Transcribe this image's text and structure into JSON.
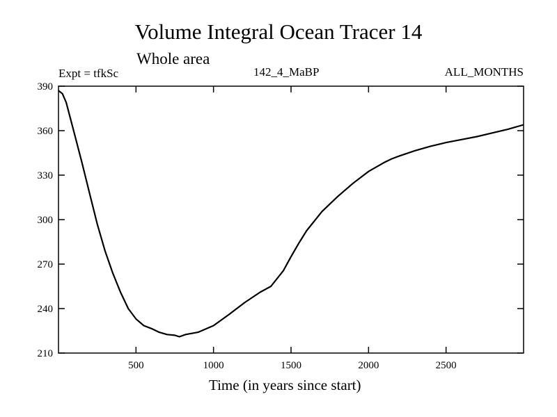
{
  "chart_data": {
    "type": "line",
    "title": "Volume Integral Ocean Tracer 14",
    "subtitle": "Whole area",
    "annotations": {
      "left": "Expt = tfkSc",
      "center": "142_4_MaBP",
      "right": "ALL_MONTHS"
    },
    "xlabel": "Time (in years since start)",
    "ylabel": "",
    "xlim": [
      0,
      3000
    ],
    "ylim": [
      210,
      390
    ],
    "xticks": [
      500,
      1000,
      1500,
      2000,
      2500
    ],
    "yticks": [
      210,
      240,
      270,
      300,
      330,
      360,
      390
    ],
    "xtick_labels": [
      "500",
      "1000",
      "1500",
      "2000",
      "2500"
    ],
    "ytick_labels": [
      "210",
      "240",
      "270",
      "300",
      "330",
      "360",
      "390"
    ],
    "grid": false,
    "legend": "none",
    "line_color": "#000000",
    "series": [
      {
        "x": [
          0,
          25,
          50,
          75,
          100,
          150,
          200,
          250,
          300,
          350,
          400,
          450,
          500,
          550,
          600,
          650,
          700,
          750,
          780,
          820,
          900,
          1000,
          1100,
          1200,
          1300,
          1370,
          1450,
          1500,
          1550,
          1600,
          1700,
          1800,
          1900,
          2000,
          2100,
          2150,
          2200,
          2300,
          2400,
          2500,
          2600,
          2700,
          2800,
          2900,
          3000
        ],
        "y": [
          387,
          385,
          379,
          369,
          359,
          339,
          318,
          297,
          279,
          264,
          251,
          240,
          233,
          228.5,
          226.5,
          224,
          222.5,
          222,
          221,
          222.5,
          224,
          228.5,
          236,
          244,
          251,
          255,
          265.5,
          275,
          284,
          292.5,
          305.5,
          315.5,
          324.5,
          332.5,
          338.5,
          341,
          343,
          346.5,
          349.5,
          352,
          354,
          356,
          358.5,
          361,
          364
        ]
      }
    ]
  }
}
